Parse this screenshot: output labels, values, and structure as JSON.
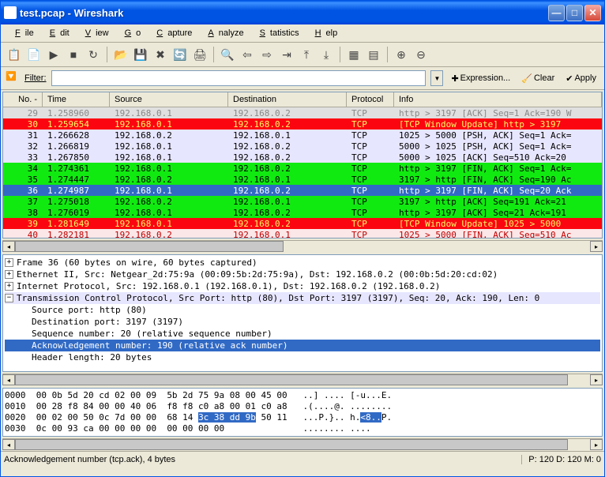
{
  "window": {
    "title": "test.pcap - Wireshark"
  },
  "menu": [
    "File",
    "Edit",
    "View",
    "Go",
    "Capture",
    "Analyze",
    "Statistics",
    "Help"
  ],
  "filter": {
    "label": "Filter:",
    "value": "",
    "expression": "Expression...",
    "clear": "Clear",
    "apply": "Apply"
  },
  "columns": [
    "No. -",
    "Time",
    "Source",
    "Destination",
    "Protocol",
    "Info"
  ],
  "row_colors": {
    "red": {
      "bg": "#fb0610",
      "fg": "#fffa65"
    },
    "lav": {
      "bg": "#e7e6ff",
      "fg": "#000000"
    },
    "grn": {
      "bg": "#11ea11",
      "fg": "#000000"
    },
    "blu": {
      "bg": "#316ac5",
      "fg": "#ffffff"
    },
    "pnk": {
      "bg": "#fce7e8",
      "fg": "#c00000"
    },
    "gry": {
      "bg": "#e0e0e0",
      "fg": "#888"
    }
  },
  "packets": [
    {
      "c": "gry",
      "no": "29",
      "time": "1.258960",
      "src": "192.168.0.1",
      "dst": "192.168.0.2",
      "proto": "TCP",
      "info": "http > 3197  [ACK] Seq=1 Ack=190 W"
    },
    {
      "c": "red",
      "no": "30",
      "time": "1.259654",
      "src": "192.168.0.1",
      "dst": "192.168.0.2",
      "proto": "TCP",
      "info": "[TCP Window Update] http > 3197 "
    },
    {
      "c": "lav",
      "no": "31",
      "time": "1.266628",
      "src": "192.168.0.2",
      "dst": "192.168.0.1",
      "proto": "TCP",
      "info": "1025 > 5000  [PSH, ACK] Seq=1 Ack="
    },
    {
      "c": "lav",
      "no": "32",
      "time": "1.266819",
      "src": "192.168.0.1",
      "dst": "192.168.0.2",
      "proto": "TCP",
      "info": "5000 > 1025  [PSH, ACK] Seq=1 Ack="
    },
    {
      "c": "lav",
      "no": "33",
      "time": "1.267850",
      "src": "192.168.0.1",
      "dst": "192.168.0.2",
      "proto": "TCP",
      "info": "5000 > 1025  [ACK] Seq=510 Ack=20"
    },
    {
      "c": "grn",
      "no": "34",
      "time": "1.274361",
      "src": "192.168.0.1",
      "dst": "192.168.0.2",
      "proto": "TCP",
      "info": "http > 3197  [FIN, ACK] Seq=1 Ack="
    },
    {
      "c": "grn",
      "no": "35",
      "time": "1.274447",
      "src": "192.168.0.2",
      "dst": "192.168.0.1",
      "proto": "TCP",
      "info": "3197 > http  [FIN, ACK] Seq=190 Ac"
    },
    {
      "c": "blu",
      "no": "36",
      "time": "1.274987",
      "src": "192.168.0.1",
      "dst": "192.168.0.2",
      "proto": "TCP",
      "info": "http > 3197  [FIN, ACK] Seq=20 Ack"
    },
    {
      "c": "grn",
      "no": "37",
      "time": "1.275018",
      "src": "192.168.0.2",
      "dst": "192.168.0.1",
      "proto": "TCP",
      "info": "3197 > http  [ACK] Seq=191 Ack=21 "
    },
    {
      "c": "grn",
      "no": "38",
      "time": "1.276019",
      "src": "192.168.0.1",
      "dst": "192.168.0.2",
      "proto": "TCP",
      "info": "http > 3197  [ACK] Seq=21 Ack=191 "
    },
    {
      "c": "red",
      "no": "39",
      "time": "1.281649",
      "src": "192.168.0.1",
      "dst": "192.168.0.2",
      "proto": "TCP",
      "info": "[TCP Window Update] 1025 > 5000 "
    },
    {
      "c": "pnk",
      "no": "40",
      "time": "1.282181",
      "src": "192.168.0.2",
      "dst": "192.168.0.1",
      "proto": "TCP",
      "info": "1025 > 5000  [FIN, ACK] Seq=510 Ac"
    }
  ],
  "tree": {
    "frame": "Frame 36 (60 bytes on wire, 60 bytes captured)",
    "eth": "Ethernet II, Src: Netgear_2d:75:9a (00:09:5b:2d:75:9a), Dst: 192.168.0.2 (00:0b:5d:20:cd:02)",
    "ip": "Internet Protocol, Src: 192.168.0.1 (192.168.0.1), Dst: 192.168.0.2 (192.168.0.2)",
    "tcp": "Transmission Control Protocol, Src Port: http (80), Dst Port: 3197 (3197), Seq: 20, Ack: 190, Len: 0",
    "srcport": "Source port: http (80)",
    "dstport": "Destination port: 3197 (3197)",
    "seq": "Sequence number: 20    (relative sequence number)",
    "ack": "Acknowledgement number: 190    (relative ack number)",
    "hlen": "Header length: 20 bytes"
  },
  "hex": {
    "l0_off": "0000",
    "l0_hex": "00 0b 5d 20 cd 02 00 09  5b 2d 75 9a 08 00 45 00",
    "l0_asc": "..] .... [-u...E.",
    "l1_off": "0010",
    "l1_hex": "00 28 f8 84 00 00 40 06  f8 f8 c0 a8 00 01 c0 a8",
    "l1_asc": ".(....@. ........",
    "l2_off": "0020",
    "l2_hex1": "00 02 00 50 0c 7d 00 00  68 14 ",
    "l2_sel": "3c 38 dd 9b",
    "l2_hex2": " 50 11",
    "l2_asc1": "...P.}.. h.",
    "l2_ascsel": "<8..",
    "l2_asc2": "P.",
    "l3_off": "0030",
    "l3_hex": "0c 00 93 ca 00 00 00 00  00 00 00 00",
    "l3_asc": "........ ...."
  },
  "status": {
    "left": "Acknowledgement number (tcp.ack), 4 bytes",
    "right": "P: 120 D: 120 M: 0"
  }
}
